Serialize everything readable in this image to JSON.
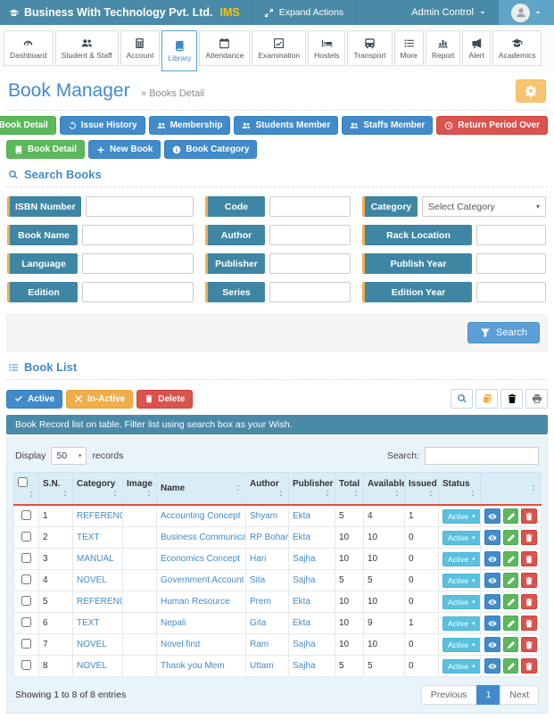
{
  "header": {
    "brand": "Business With Technology Pvt. Ltd.",
    "brand_suffix": "IMS",
    "expand_actions": "Expand Actions",
    "admin_label": "Admin Control"
  },
  "nav": {
    "items": [
      {
        "label": "Dashboard",
        "icon": "gauge",
        "active": false
      },
      {
        "label": "Student & Staff",
        "icon": "users",
        "active": false
      },
      {
        "label": "Account",
        "icon": "calculator",
        "active": false
      },
      {
        "label": "Library",
        "icon": "book",
        "active": true
      },
      {
        "label": "Attendance",
        "icon": "calendar",
        "active": false
      },
      {
        "label": "Examination",
        "icon": "chart",
        "active": false
      },
      {
        "label": "Hostels",
        "icon": "bed",
        "active": false
      },
      {
        "label": "Transport",
        "icon": "bus",
        "active": false
      },
      {
        "label": "More",
        "icon": "list",
        "active": false
      },
      {
        "label": "Report",
        "icon": "bars",
        "active": false
      },
      {
        "label": "Alert",
        "icon": "megaphone",
        "active": false
      },
      {
        "label": "Academics",
        "icon": "gradcap",
        "active": false
      }
    ]
  },
  "page": {
    "title": "Book Manager",
    "breadcrumb": "» Books Detail"
  },
  "quick_actions": [
    {
      "label": "Book Detail",
      "color": "green",
      "icon": "book"
    },
    {
      "label": "Issue History",
      "color": "blue",
      "icon": "history"
    },
    {
      "label": "Membership",
      "color": "blue",
      "icon": "users"
    },
    {
      "label": "Students Member",
      "color": "blue",
      "icon": "users"
    },
    {
      "label": "Staffs Member",
      "color": "blue",
      "icon": "users"
    },
    {
      "label": "Return Period Over",
      "color": "red",
      "icon": "clock"
    }
  ],
  "secondary_actions": [
    {
      "label": "Book Detail",
      "color": "green",
      "icon": "book"
    },
    {
      "label": "New Book",
      "color": "blue",
      "icon": "plus"
    },
    {
      "label": "Book Category",
      "color": "blue",
      "icon": "info"
    }
  ],
  "search_panel": {
    "title": "Search Books",
    "search_button": "Search",
    "fields": [
      {
        "label": "ISBN Number",
        "control": "input",
        "value": ""
      },
      {
        "label": "Code",
        "control": "input",
        "value": ""
      },
      {
        "label": "Category",
        "control": "select",
        "value": "Select Category"
      },
      {
        "label": "Book Name",
        "control": "input",
        "value": ""
      },
      {
        "label": "Author",
        "control": "input",
        "value": ""
      },
      {
        "label": "Rack Location",
        "control": "input",
        "value": ""
      },
      {
        "label": "Language",
        "control": "input",
        "value": ""
      },
      {
        "label": "Publisher",
        "control": "input",
        "value": ""
      },
      {
        "label": "Publish Year",
        "control": "input",
        "value": ""
      },
      {
        "label": "Edition",
        "control": "input",
        "value": ""
      },
      {
        "label": "Series",
        "control": "input",
        "value": ""
      },
      {
        "label": "Edition Year",
        "control": "input",
        "value": ""
      }
    ]
  },
  "book_list": {
    "title": "Book List",
    "bulk_actions": [
      {
        "label": "Active",
        "color": "blue",
        "icon": "check"
      },
      {
        "label": "In-Active",
        "color": "orange",
        "icon": "times"
      },
      {
        "label": "Delete",
        "color": "red",
        "icon": "trash"
      }
    ],
    "tools": [
      {
        "name": "search",
        "icon": "search"
      },
      {
        "name": "copy",
        "icon": "copy"
      },
      {
        "name": "delete",
        "icon": "trash"
      },
      {
        "name": "print",
        "icon": "print"
      }
    ],
    "info": "Book Record list on table. Filter list using search box as your Wish.",
    "display": {
      "prefix": "Display",
      "value": "50",
      "suffix": "records"
    },
    "search_label": "Search:",
    "table": {
      "headers": [
        "",
        "S.N.",
        "Category",
        "Image",
        "Name",
        "Author",
        "Publisher",
        "Total",
        "Available",
        "Issued",
        "Status",
        ""
      ],
      "rows": [
        {
          "sn": "1",
          "category": "REFERENCE",
          "image": "",
          "name": "Accounting Concept",
          "author": "Shyam",
          "publisher": "Ekta",
          "total": "5",
          "available": "4",
          "issued": "1",
          "status": "Active"
        },
        {
          "sn": "2",
          "category": "TEXT",
          "image": "",
          "name": "Business Communication",
          "author": "RP Bohara",
          "publisher": "Ekta",
          "total": "10",
          "available": "10",
          "issued": "0",
          "status": "Active"
        },
        {
          "sn": "3",
          "category": "MANUAL",
          "image": "",
          "name": "Economics Concept",
          "author": "Hari",
          "publisher": "Sajha",
          "total": "10",
          "available": "10",
          "issued": "0",
          "status": "Active"
        },
        {
          "sn": "4",
          "category": "NOVEL",
          "image": "",
          "name": "Government Account",
          "author": "Sita",
          "publisher": "Sajha",
          "total": "5",
          "available": "5",
          "issued": "0",
          "status": "Active"
        },
        {
          "sn": "5",
          "category": "REFERENCE",
          "image": "",
          "name": "Human Resource",
          "author": "Prem",
          "publisher": "Ekta",
          "total": "10",
          "available": "10",
          "issued": "0",
          "status": "Active"
        },
        {
          "sn": "6",
          "category": "TEXT",
          "image": "",
          "name": "Nepali",
          "author": "Gita",
          "publisher": "Ekta",
          "total": "10",
          "available": "9",
          "issued": "1",
          "status": "Active"
        },
        {
          "sn": "7",
          "category": "NOVEL",
          "image": "",
          "name": "Novel first",
          "author": "Ram",
          "publisher": "Sajha",
          "total": "10",
          "available": "10",
          "issued": "0",
          "status": "Active"
        },
        {
          "sn": "8",
          "category": "NOVEL",
          "image": "",
          "name": "Thank you Mem",
          "author": "Uttam",
          "publisher": "Sajha",
          "total": "5",
          "available": "5",
          "issued": "0",
          "status": "Active"
        }
      ]
    },
    "showing": "Showing 1 to 8 of 8 entries",
    "pagination": [
      {
        "label": "Previous",
        "active": false
      },
      {
        "label": "1",
        "active": true
      },
      {
        "label": "Next",
        "active": false
      }
    ]
  },
  "colors": {
    "header_teal": "#4a8aa9",
    "primary_blue": "#428bca",
    "success_green": "#5cb85c",
    "danger_red": "#d9534f",
    "warning_orange": "#f0ad4e",
    "info_cyan": "#5bc0de",
    "brand_yellow": "#f5c10e",
    "table_header_underline": "#e74c3c"
  }
}
